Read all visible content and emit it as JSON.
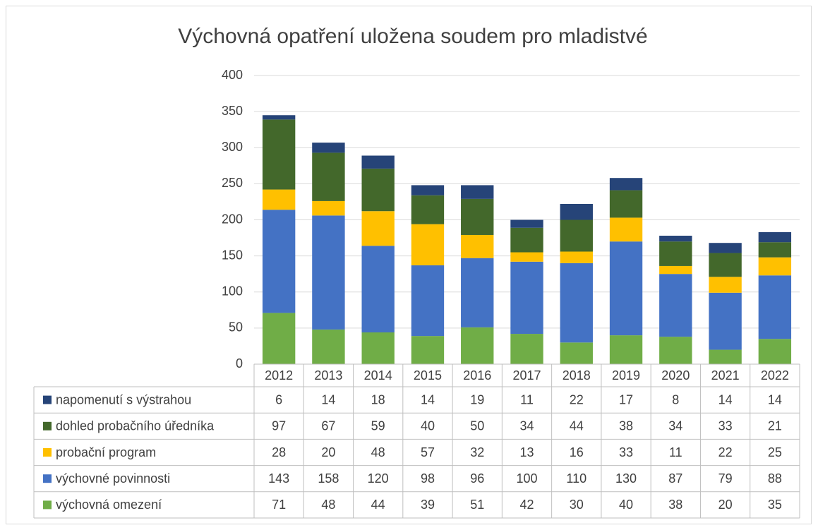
{
  "chart_data": {
    "type": "stacked-bar",
    "title": "Výchovná opatření uložena soudem pro mladistvé",
    "categories": [
      "2012",
      "2013",
      "2014",
      "2015",
      "2016",
      "2017",
      "2018",
      "2019",
      "2020",
      "2021",
      "2022"
    ],
    "series": [
      {
        "name": "výchovná omezení",
        "color": "#70ad47",
        "values": [
          71,
          48,
          44,
          39,
          51,
          42,
          30,
          40,
          38,
          20,
          35
        ]
      },
      {
        "name": "výchovné povinnosti",
        "color": "#4472c4",
        "values": [
          143,
          158,
          120,
          98,
          96,
          100,
          110,
          130,
          87,
          79,
          88
        ]
      },
      {
        "name": "probační program",
        "color": "#ffc000",
        "values": [
          28,
          20,
          48,
          57,
          32,
          13,
          16,
          33,
          11,
          22,
          25
        ]
      },
      {
        "name": "dohled probačního úředníka",
        "color": "#43682b",
        "values": [
          97,
          67,
          59,
          40,
          50,
          34,
          44,
          38,
          34,
          33,
          21
        ]
      },
      {
        "name": "napomenutí s výstrahou",
        "color": "#264478",
        "values": [
          6,
          14,
          18,
          14,
          19,
          11,
          22,
          17,
          8,
          14,
          14
        ]
      }
    ],
    "ylim": [
      0,
      400
    ],
    "yticks": [
      0,
      50,
      100,
      150,
      200,
      250,
      300,
      350,
      400
    ],
    "grid": true,
    "data_table": true
  }
}
